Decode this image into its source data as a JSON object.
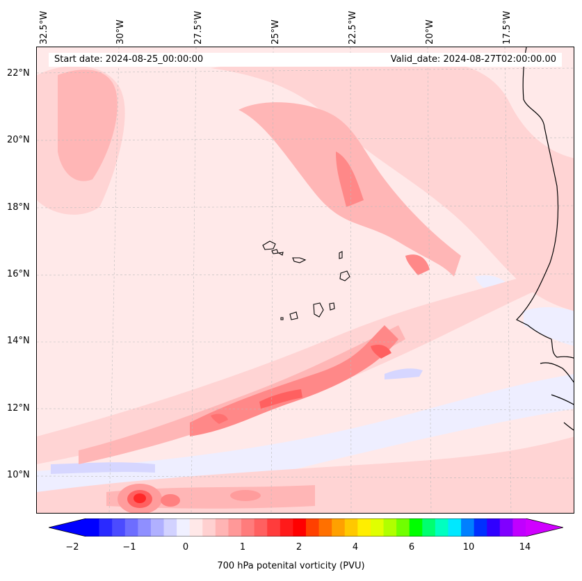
{
  "header": {
    "start_date": "Start date: 2024-08-25_00:00:00",
    "valid_date": "Valid_date: 2024-08-27T02:00:00.00"
  },
  "axes": {
    "longitude_labels": [
      "32.5°W",
      "30°W",
      "27.5°W",
      "25°W",
      "22.5°W",
      "20°W",
      "17.5°W"
    ],
    "latitude_labels": [
      "22°N",
      "20°N",
      "18°N",
      "16°N",
      "14°N",
      "12°N",
      "10°N"
    ]
  },
  "colorbar": {
    "title": "700 hPa potenital vorticity (PVU)",
    "tick_labels": [
      "−2",
      "−1",
      "0",
      "1",
      "2",
      "4",
      "6",
      "10",
      "14"
    ],
    "colors": [
      "#0000ff",
      "#2a2aff",
      "#4b4bff",
      "#6d6dff",
      "#8f8fff",
      "#b0b0ff",
      "#d2d2ff",
      "#f0f0ff",
      "#ffe8e8",
      "#ffd0d0",
      "#ffb4b4",
      "#ff9898",
      "#ff7c7c",
      "#ff6060",
      "#ff3c3c",
      "#ff1a1a",
      "#ff0000",
      "#ff4000",
      "#ff7000",
      "#ffa000",
      "#ffc800",
      "#ffee00",
      "#e0ff00",
      "#b0ff00",
      "#70ff00",
      "#00ff00",
      "#00ff70",
      "#00ffc0",
      "#00e8ff",
      "#0080ff",
      "#0030ff",
      "#3000ff",
      "#8000ff",
      "#c000ff"
    ],
    "under_color": "#0000ff",
    "over_color": "#d000ff"
  }
}
